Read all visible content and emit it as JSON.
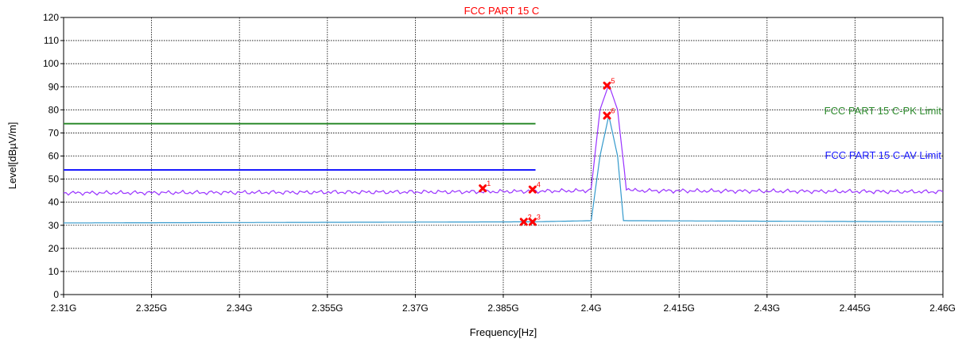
{
  "chart_data": {
    "type": "line",
    "title": "FCC PART 15 C",
    "xlabel": "Frequency[Hz]",
    "ylabel": "Level[dBµV/m]",
    "xlim": [
      2.31,
      2.46
    ],
    "ylim": [
      0,
      120
    ],
    "grid": true,
    "x_ticks": [
      "2.31G",
      "2.325G",
      "2.34G",
      "2.355G",
      "2.37G",
      "2.385G",
      "2.4G",
      "2.415G",
      "2.43G",
      "2.445G",
      "2.46G"
    ],
    "y_ticks": [
      "0",
      "10",
      "20",
      "30",
      "40",
      "50",
      "60",
      "70",
      "80",
      "90",
      "100",
      "110",
      "120"
    ],
    "limits": [
      {
        "name": "FCC PART 15 C-PK Limit",
        "value": 74,
        "x_range": [
          2.31,
          2.3905
        ],
        "color": "#2e8b2e"
      },
      {
        "name": "FCC PART 15 C-AV Limit",
        "value": 54,
        "x_range": [
          2.31,
          2.3905
        ],
        "color": "#1a1aff"
      }
    ],
    "series": [
      {
        "color": "#9933ff",
        "x": [
          2.31,
          2.38,
          2.399,
          2.4,
          2.4015,
          2.403,
          2.4045,
          2.406,
          2.4075,
          2.46
        ],
        "y": [
          44,
          44.5,
          45,
          46,
          80,
          91,
          80,
          46,
          45,
          44.5
        ]
      },
      {
        "color": "#3399cc",
        "x": [
          2.31,
          2.39,
          2.4,
          2.4015,
          2.403,
          2.4045,
          2.4055,
          2.46
        ],
        "y": [
          31,
          31.5,
          32,
          60,
          77.5,
          60,
          32,
          31.5
        ]
      }
    ],
    "markers": [
      {
        "label": "1",
        "x": 2.3815,
        "y": 46
      },
      {
        "label": "2",
        "x": 2.3885,
        "y": 31.5
      },
      {
        "label": "3",
        "x": 2.39,
        "y": 31.5
      },
      {
        "label": "4",
        "x": 2.39,
        "y": 45.5
      },
      {
        "label": "5",
        "x": 2.4027,
        "y": 90.5
      },
      {
        "label": "6",
        "x": 2.4027,
        "y": 77.5
      }
    ],
    "title_color": "#ff0000",
    "marker_color": "#ff0000"
  }
}
